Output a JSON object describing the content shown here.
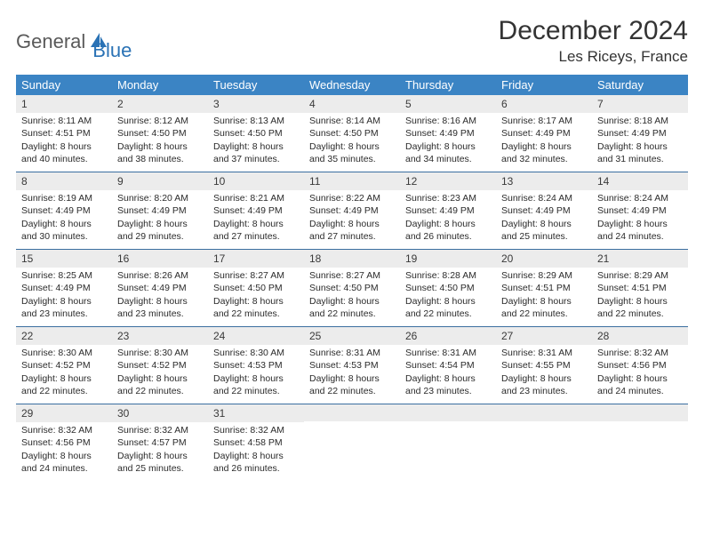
{
  "brand": {
    "part1": "General",
    "part2": "Blue"
  },
  "title": "December 2024",
  "location": "Les Riceys, France",
  "colors": {
    "header_bg": "#3b84c4",
    "header_fg": "#ffffff",
    "daynum_bg": "#ececec",
    "week_border": "#3b6ea0",
    "brand_gray": "#5a5a5a",
    "brand_blue": "#2a72b5"
  },
  "dow": [
    "Sunday",
    "Monday",
    "Tuesday",
    "Wednesday",
    "Thursday",
    "Friday",
    "Saturday"
  ],
  "weeks": [
    [
      {
        "n": "1",
        "sr": "Sunrise: 8:11 AM",
        "ss": "Sunset: 4:51 PM",
        "dl1": "Daylight: 8 hours",
        "dl2": "and 40 minutes."
      },
      {
        "n": "2",
        "sr": "Sunrise: 8:12 AM",
        "ss": "Sunset: 4:50 PM",
        "dl1": "Daylight: 8 hours",
        "dl2": "and 38 minutes."
      },
      {
        "n": "3",
        "sr": "Sunrise: 8:13 AM",
        "ss": "Sunset: 4:50 PM",
        "dl1": "Daylight: 8 hours",
        "dl2": "and 37 minutes."
      },
      {
        "n": "4",
        "sr": "Sunrise: 8:14 AM",
        "ss": "Sunset: 4:50 PM",
        "dl1": "Daylight: 8 hours",
        "dl2": "and 35 minutes."
      },
      {
        "n": "5",
        "sr": "Sunrise: 8:16 AM",
        "ss": "Sunset: 4:49 PM",
        "dl1": "Daylight: 8 hours",
        "dl2": "and 34 minutes."
      },
      {
        "n": "6",
        "sr": "Sunrise: 8:17 AM",
        "ss": "Sunset: 4:49 PM",
        "dl1": "Daylight: 8 hours",
        "dl2": "and 32 minutes."
      },
      {
        "n": "7",
        "sr": "Sunrise: 8:18 AM",
        "ss": "Sunset: 4:49 PM",
        "dl1": "Daylight: 8 hours",
        "dl2": "and 31 minutes."
      }
    ],
    [
      {
        "n": "8",
        "sr": "Sunrise: 8:19 AM",
        "ss": "Sunset: 4:49 PM",
        "dl1": "Daylight: 8 hours",
        "dl2": "and 30 minutes."
      },
      {
        "n": "9",
        "sr": "Sunrise: 8:20 AM",
        "ss": "Sunset: 4:49 PM",
        "dl1": "Daylight: 8 hours",
        "dl2": "and 29 minutes."
      },
      {
        "n": "10",
        "sr": "Sunrise: 8:21 AM",
        "ss": "Sunset: 4:49 PM",
        "dl1": "Daylight: 8 hours",
        "dl2": "and 27 minutes."
      },
      {
        "n": "11",
        "sr": "Sunrise: 8:22 AM",
        "ss": "Sunset: 4:49 PM",
        "dl1": "Daylight: 8 hours",
        "dl2": "and 27 minutes."
      },
      {
        "n": "12",
        "sr": "Sunrise: 8:23 AM",
        "ss": "Sunset: 4:49 PM",
        "dl1": "Daylight: 8 hours",
        "dl2": "and 26 minutes."
      },
      {
        "n": "13",
        "sr": "Sunrise: 8:24 AM",
        "ss": "Sunset: 4:49 PM",
        "dl1": "Daylight: 8 hours",
        "dl2": "and 25 minutes."
      },
      {
        "n": "14",
        "sr": "Sunrise: 8:24 AM",
        "ss": "Sunset: 4:49 PM",
        "dl1": "Daylight: 8 hours",
        "dl2": "and 24 minutes."
      }
    ],
    [
      {
        "n": "15",
        "sr": "Sunrise: 8:25 AM",
        "ss": "Sunset: 4:49 PM",
        "dl1": "Daylight: 8 hours",
        "dl2": "and 23 minutes."
      },
      {
        "n": "16",
        "sr": "Sunrise: 8:26 AM",
        "ss": "Sunset: 4:49 PM",
        "dl1": "Daylight: 8 hours",
        "dl2": "and 23 minutes."
      },
      {
        "n": "17",
        "sr": "Sunrise: 8:27 AM",
        "ss": "Sunset: 4:50 PM",
        "dl1": "Daylight: 8 hours",
        "dl2": "and 22 minutes."
      },
      {
        "n": "18",
        "sr": "Sunrise: 8:27 AM",
        "ss": "Sunset: 4:50 PM",
        "dl1": "Daylight: 8 hours",
        "dl2": "and 22 minutes."
      },
      {
        "n": "19",
        "sr": "Sunrise: 8:28 AM",
        "ss": "Sunset: 4:50 PM",
        "dl1": "Daylight: 8 hours",
        "dl2": "and 22 minutes."
      },
      {
        "n": "20",
        "sr": "Sunrise: 8:29 AM",
        "ss": "Sunset: 4:51 PM",
        "dl1": "Daylight: 8 hours",
        "dl2": "and 22 minutes."
      },
      {
        "n": "21",
        "sr": "Sunrise: 8:29 AM",
        "ss": "Sunset: 4:51 PM",
        "dl1": "Daylight: 8 hours",
        "dl2": "and 22 minutes."
      }
    ],
    [
      {
        "n": "22",
        "sr": "Sunrise: 8:30 AM",
        "ss": "Sunset: 4:52 PM",
        "dl1": "Daylight: 8 hours",
        "dl2": "and 22 minutes."
      },
      {
        "n": "23",
        "sr": "Sunrise: 8:30 AM",
        "ss": "Sunset: 4:52 PM",
        "dl1": "Daylight: 8 hours",
        "dl2": "and 22 minutes."
      },
      {
        "n": "24",
        "sr": "Sunrise: 8:30 AM",
        "ss": "Sunset: 4:53 PM",
        "dl1": "Daylight: 8 hours",
        "dl2": "and 22 minutes."
      },
      {
        "n": "25",
        "sr": "Sunrise: 8:31 AM",
        "ss": "Sunset: 4:53 PM",
        "dl1": "Daylight: 8 hours",
        "dl2": "and 22 minutes."
      },
      {
        "n": "26",
        "sr": "Sunrise: 8:31 AM",
        "ss": "Sunset: 4:54 PM",
        "dl1": "Daylight: 8 hours",
        "dl2": "and 23 minutes."
      },
      {
        "n": "27",
        "sr": "Sunrise: 8:31 AM",
        "ss": "Sunset: 4:55 PM",
        "dl1": "Daylight: 8 hours",
        "dl2": "and 23 minutes."
      },
      {
        "n": "28",
        "sr": "Sunrise: 8:32 AM",
        "ss": "Sunset: 4:56 PM",
        "dl1": "Daylight: 8 hours",
        "dl2": "and 24 minutes."
      }
    ],
    [
      {
        "n": "29",
        "sr": "Sunrise: 8:32 AM",
        "ss": "Sunset: 4:56 PM",
        "dl1": "Daylight: 8 hours",
        "dl2": "and 24 minutes."
      },
      {
        "n": "30",
        "sr": "Sunrise: 8:32 AM",
        "ss": "Sunset: 4:57 PM",
        "dl1": "Daylight: 8 hours",
        "dl2": "and 25 minutes."
      },
      {
        "n": "31",
        "sr": "Sunrise: 8:32 AM",
        "ss": "Sunset: 4:58 PM",
        "dl1": "Daylight: 8 hours",
        "dl2": "and 26 minutes."
      },
      {
        "empty": true
      },
      {
        "empty": true
      },
      {
        "empty": true
      },
      {
        "empty": true
      }
    ]
  ]
}
